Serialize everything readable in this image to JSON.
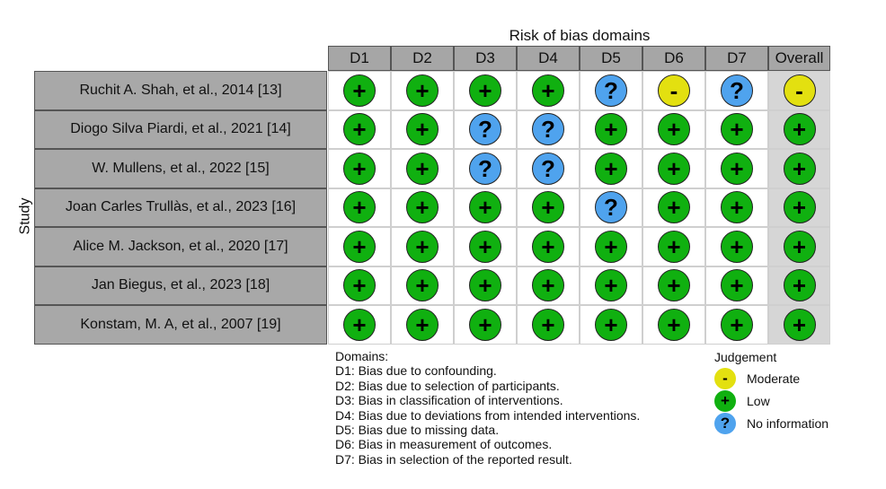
{
  "chart_data": {
    "type": "table",
    "title": "Risk of bias domains",
    "ylabel": "Study",
    "columns": [
      "D1",
      "D2",
      "D3",
      "D4",
      "D5",
      "D6",
      "D7",
      "Overall"
    ],
    "studies": [
      {
        "name": "Ruchit A. Shah, et al., 2014 [13]",
        "judgements": [
          "Low",
          "Low",
          "Low",
          "Low",
          "No information",
          "Moderate",
          "No information",
          "Moderate"
        ]
      },
      {
        "name": "Diogo Silva Piardi, et al., 2021 [14]",
        "judgements": [
          "Low",
          "Low",
          "No information",
          "No information",
          "Low",
          "Low",
          "Low",
          "Low"
        ]
      },
      {
        "name": "W. Mullens, et al., 2022 [15]",
        "judgements": [
          "Low",
          "Low",
          "No information",
          "No information",
          "Low",
          "Low",
          "Low",
          "Low"
        ]
      },
      {
        "name": "Joan Carles Trullàs, et al., 2023 [16]",
        "judgements": [
          "Low",
          "Low",
          "Low",
          "Low",
          "No information",
          "Low",
          "Low",
          "Low"
        ]
      },
      {
        "name": "Alice M. Jackson, et al., 2020 [17]",
        "judgements": [
          "Low",
          "Low",
          "Low",
          "Low",
          "Low",
          "Low",
          "Low",
          "Low"
        ]
      },
      {
        "name": "Jan Biegus, et al., 2023 [18]",
        "judgements": [
          "Low",
          "Low",
          "Low",
          "Low",
          "Low",
          "Low",
          "Low",
          "Low"
        ]
      },
      {
        "name": "Konstam, M. A, et al., 2007 [19]",
        "judgements": [
          "Low",
          "Low",
          "Low",
          "Low",
          "Low",
          "Low",
          "Low",
          "Low"
        ]
      }
    ],
    "domains_heading": "Domains:",
    "domains": [
      "D1: Bias due to confounding.",
      "D2: Bias due to selection of participants.",
      "D3: Bias in classification of interventions.",
      "D4: Bias due to deviations from intended interventions.",
      "D5: Bias due to missing data.",
      "D6: Bias in measurement of outcomes.",
      "D7: Bias in selection of the reported result."
    ],
    "legend_title": "Judgement",
    "legend": [
      {
        "label": "Moderate",
        "symbol": "-",
        "color": "#e3e010"
      },
      {
        "label": "Low",
        "symbol": "+",
        "color": "#10b010"
      },
      {
        "label": "No information",
        "symbol": "?",
        "color": "#4fa3ee"
      }
    ]
  }
}
